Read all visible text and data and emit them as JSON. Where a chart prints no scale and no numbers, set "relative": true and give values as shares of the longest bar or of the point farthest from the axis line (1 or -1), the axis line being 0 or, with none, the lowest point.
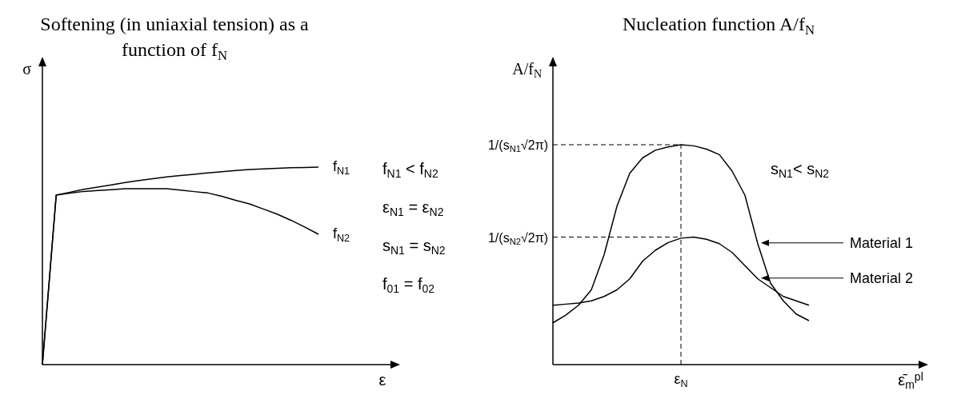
{
  "chart_data": [
    {
      "type": "line",
      "title": "Softening (in uniaxial tension) as a function of f$_{N}$",
      "xlabel": "ε",
      "ylabel": "σ",
      "relative": true,
      "line_style": "solid",
      "categories": [
        null,
        null,
        null,
        null,
        null,
        null,
        null,
        null,
        null,
        null,
        null,
        null,
        null,
        null,
        null,
        null,
        null,
        null,
        null,
        null,
        null
      ],
      "series": [
        {
          "name": "f$_{N1}$",
          "color": "#000000",
          "values": [
            0,
            0.858,
            0.873,
            0.888,
            0.899,
            0.91,
            0.922,
            0.932,
            0.941,
            0.95,
            0.957,
            0.964,
            0.971,
            0.977,
            0.983,
            0.988,
            0.991,
            0.994,
            0.997,
            0.998,
            1
          ]
        },
        {
          "name": "f$_{N2}$",
          "color": "#000000",
          "values": [
            0,
            0.858,
            0.868,
            0.877,
            0.882,
            0.886,
            0.891,
            0.891,
            0.891,
            0.891,
            0.884,
            0.876,
            0.869,
            0.852,
            0.832,
            0.814,
            0.788,
            0.762,
            0.731,
            0.697,
            0.66
          ]
        }
      ],
      "annotations": [
        "f$_{N1}$ < f$_{N2}$",
        "ε$_{N1}$ = ε$_{N2}$",
        "s$_{N1}$ = s$_{N2}$",
        "f$_{01}$ = f$_{02}$"
      ]
    },
    {
      "type": "line",
      "title": "Nucleation function A/f$_{N}$",
      "xlabel": "ε̄$_{m}$$^{pl}$",
      "ylabel": "A/f$_{N}$",
      "relative": true,
      "line_style": "solid",
      "categories": [
        null,
        null,
        null,
        null,
        null,
        null,
        null,
        null,
        null,
        null,
        null,
        null,
        null,
        null,
        null,
        null,
        null,
        null,
        null,
        null,
        null
      ],
      "series": [
        {
          "name": "Material 1",
          "color": "#000000",
          "values": [
            0.19,
            0.225,
            0.27,
            0.34,
            0.5,
            0.72,
            0.87,
            0.94,
            0.975,
            0.99,
            1,
            0.995,
            0.98,
            0.955,
            0.88,
            0.77,
            0.55,
            0.37,
            0.29,
            0.23,
            0.2
          ]
        },
        {
          "name": "Material 2",
          "color": "#000000",
          "values": [
            0.27,
            0.275,
            0.28,
            0.29,
            0.31,
            0.34,
            0.39,
            0.47,
            0.52,
            0.555,
            0.575,
            0.58,
            0.57,
            0.55,
            0.51,
            0.45,
            0.39,
            0.35,
            0.31,
            0.29,
            0.27
          ]
        }
      ],
      "ref_lines": [
        {
          "axis": "y",
          "value": 1,
          "label": "1/(s$_{N1}$√2π)",
          "line_style": "dashed"
        },
        {
          "axis": "y",
          "value": 0.58,
          "label": "1/(s$_{N2}$√2π)",
          "line_style": "dashed"
        }
      ],
      "annotations": [
        "ε$_{N}$",
        "s$_{N1}$< s$_{N2}$"
      ]
    }
  ]
}
